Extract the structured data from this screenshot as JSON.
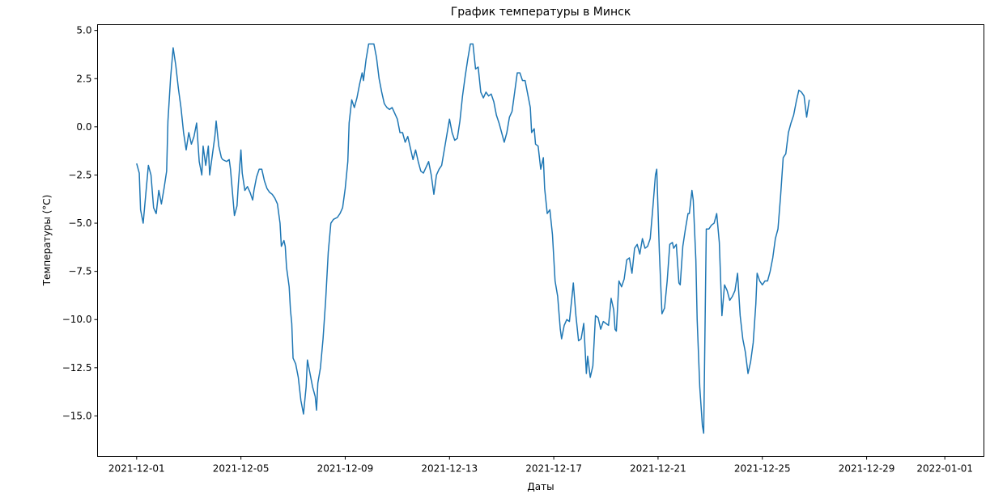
{
  "chart_data": {
    "type": "line",
    "title": "График температуры в Минск",
    "xlabel": "Даты",
    "ylabel": "Температуры (°C)",
    "x_start": "2021-12-01",
    "xlim": [
      "2021-11-29T12:00",
      "2022-01-02T12:00"
    ],
    "ylim": [
      -17.1,
      5.3
    ],
    "grid": false,
    "x_ticks": [
      "2021-12-01",
      "2021-12-05",
      "2021-12-09",
      "2021-12-13",
      "2021-12-17",
      "2021-12-21",
      "2021-12-25",
      "2021-12-29",
      "2022-01-01"
    ],
    "y_ticks": [
      5.0,
      2.5,
      0.0,
      -2.5,
      -5.0,
      -7.5,
      -10.0,
      -12.5,
      -15.0
    ],
    "y_tick_labels": [
      "5.0",
      "2.5",
      "0.0",
      "−2.5",
      "−5.0",
      "−7.5",
      "−10.0",
      "−12.5",
      "−15.0"
    ],
    "series": [
      {
        "color": "#1f77b4",
        "points": [
          [
            0.0,
            -1.9
          ],
          [
            0.1,
            -2.4
          ],
          [
            0.15,
            -4.3
          ],
          [
            0.25,
            -5.0
          ],
          [
            0.35,
            -3.5
          ],
          [
            0.45,
            -2.0
          ],
          [
            0.55,
            -2.5
          ],
          [
            0.65,
            -4.2
          ],
          [
            0.75,
            -4.5
          ],
          [
            0.85,
            -3.3
          ],
          [
            0.95,
            -4.0
          ],
          [
            1.05,
            -3.2
          ],
          [
            1.15,
            -2.3
          ],
          [
            1.2,
            0.3
          ],
          [
            1.3,
            2.5
          ],
          [
            1.4,
            4.1
          ],
          [
            1.5,
            3.2
          ],
          [
            1.6,
            2.0
          ],
          [
            1.7,
            1.0
          ],
          [
            1.8,
            -0.3
          ],
          [
            1.9,
            -1.2
          ],
          [
            2.0,
            -0.3
          ],
          [
            2.1,
            -0.9
          ],
          [
            2.2,
            -0.5
          ],
          [
            2.3,
            0.2
          ],
          [
            2.4,
            -1.8
          ],
          [
            2.5,
            -2.5
          ],
          [
            2.55,
            -1.0
          ],
          [
            2.65,
            -2.0
          ],
          [
            2.75,
            -1.0
          ],
          [
            2.8,
            -2.5
          ],
          [
            2.9,
            -1.5
          ],
          [
            3.0,
            -0.5
          ],
          [
            3.05,
            0.3
          ],
          [
            3.15,
            -1.0
          ],
          [
            3.25,
            -1.6
          ],
          [
            3.3,
            -1.7
          ],
          [
            3.45,
            -1.8
          ],
          [
            3.55,
            -1.7
          ],
          [
            3.6,
            -2.2
          ],
          [
            3.7,
            -3.8
          ],
          [
            3.75,
            -4.6
          ],
          [
            3.85,
            -4.1
          ],
          [
            3.9,
            -3.0
          ],
          [
            4.0,
            -1.2
          ],
          [
            4.05,
            -2.4
          ],
          [
            4.15,
            -3.3
          ],
          [
            4.25,
            -3.1
          ],
          [
            4.35,
            -3.4
          ],
          [
            4.45,
            -3.8
          ],
          [
            4.5,
            -3.3
          ],
          [
            4.6,
            -2.6
          ],
          [
            4.7,
            -2.2
          ],
          [
            4.8,
            -2.2
          ],
          [
            4.9,
            -2.8
          ],
          [
            5.0,
            -3.2
          ],
          [
            5.1,
            -3.4
          ],
          [
            5.2,
            -3.5
          ],
          [
            5.3,
            -3.7
          ],
          [
            5.4,
            -4.0
          ],
          [
            5.5,
            -5.0
          ],
          [
            5.55,
            -6.2
          ],
          [
            5.65,
            -5.9
          ],
          [
            5.7,
            -6.2
          ],
          [
            5.75,
            -7.3
          ],
          [
            5.85,
            -8.3
          ],
          [
            5.9,
            -9.5
          ],
          [
            5.95,
            -10.2
          ],
          [
            6.0,
            -12.0
          ],
          [
            6.1,
            -12.3
          ],
          [
            6.2,
            -13.0
          ],
          [
            6.3,
            -14.2
          ],
          [
            6.4,
            -14.9
          ],
          [
            6.5,
            -13.5
          ],
          [
            6.55,
            -12.1
          ],
          [
            6.65,
            -12.8
          ],
          [
            6.75,
            -13.5
          ],
          [
            6.85,
            -14.0
          ],
          [
            6.9,
            -14.7
          ],
          [
            6.95,
            -13.3
          ],
          [
            7.05,
            -12.5
          ],
          [
            7.15,
            -11.0
          ],
          [
            7.25,
            -9.0
          ],
          [
            7.35,
            -6.5
          ],
          [
            7.45,
            -5.0
          ],
          [
            7.55,
            -4.8
          ],
          [
            7.7,
            -4.7
          ],
          [
            7.8,
            -4.5
          ],
          [
            7.9,
            -4.2
          ],
          [
            8.0,
            -3.2
          ],
          [
            8.1,
            -1.8
          ],
          [
            8.15,
            0.2
          ],
          [
            8.25,
            1.4
          ],
          [
            8.35,
            1.0
          ],
          [
            8.45,
            1.5
          ],
          [
            8.55,
            2.2
          ],
          [
            8.65,
            2.8
          ],
          [
            8.7,
            2.4
          ],
          [
            8.8,
            3.5
          ],
          [
            8.9,
            4.3
          ],
          [
            9.0,
            4.3
          ],
          [
            9.1,
            4.3
          ],
          [
            9.2,
            3.6
          ],
          [
            9.3,
            2.5
          ],
          [
            9.4,
            1.8
          ],
          [
            9.5,
            1.2
          ],
          [
            9.6,
            1.0
          ],
          [
            9.7,
            0.9
          ],
          [
            9.8,
            1.0
          ],
          [
            9.9,
            0.7
          ],
          [
            10.0,
            0.4
          ],
          [
            10.1,
            -0.3
          ],
          [
            10.2,
            -0.3
          ],
          [
            10.3,
            -0.8
          ],
          [
            10.4,
            -0.5
          ],
          [
            10.5,
            -1.1
          ],
          [
            10.6,
            -1.7
          ],
          [
            10.7,
            -1.2
          ],
          [
            10.8,
            -1.8
          ],
          [
            10.9,
            -2.3
          ],
          [
            11.0,
            -2.4
          ],
          [
            11.1,
            -2.1
          ],
          [
            11.2,
            -1.8
          ],
          [
            11.3,
            -2.5
          ],
          [
            11.4,
            -3.5
          ],
          [
            11.5,
            -2.5
          ],
          [
            11.6,
            -2.2
          ],
          [
            11.7,
            -2.0
          ],
          [
            11.8,
            -1.2
          ],
          [
            11.9,
            -0.4
          ],
          [
            12.0,
            0.4
          ],
          [
            12.1,
            -0.3
          ],
          [
            12.2,
            -0.7
          ],
          [
            12.3,
            -0.6
          ],
          [
            12.4,
            0.3
          ],
          [
            12.5,
            1.6
          ],
          [
            12.6,
            2.6
          ],
          [
            12.7,
            3.5
          ],
          [
            12.8,
            4.3
          ],
          [
            12.9,
            4.3
          ],
          [
            13.0,
            3.0
          ],
          [
            13.1,
            3.1
          ],
          [
            13.2,
            1.8
          ],
          [
            13.3,
            1.5
          ],
          [
            13.4,
            1.8
          ],
          [
            13.5,
            1.6
          ],
          [
            13.6,
            1.7
          ],
          [
            13.7,
            1.3
          ],
          [
            13.8,
            0.6
          ],
          [
            13.9,
            0.2
          ],
          [
            14.0,
            -0.3
          ],
          [
            14.1,
            -0.8
          ],
          [
            14.2,
            -0.3
          ],
          [
            14.3,
            0.5
          ],
          [
            14.4,
            0.8
          ],
          [
            14.5,
            1.8
          ],
          [
            14.6,
            2.8
          ],
          [
            14.7,
            2.8
          ],
          [
            14.8,
            2.4
          ],
          [
            14.9,
            2.4
          ],
          [
            15.0,
            1.7
          ],
          [
            15.1,
            1.0
          ],
          [
            15.15,
            -0.3
          ],
          [
            15.25,
            -0.1
          ],
          [
            15.3,
            -0.9
          ],
          [
            15.4,
            -1.0
          ],
          [
            15.5,
            -2.2
          ],
          [
            15.6,
            -1.6
          ],
          [
            15.65,
            -3.2
          ],
          [
            15.75,
            -4.5
          ],
          [
            15.85,
            -4.3
          ],
          [
            15.95,
            -5.6
          ],
          [
            16.05,
            -8.0
          ],
          [
            16.15,
            -8.8
          ],
          [
            16.25,
            -10.5
          ],
          [
            16.3,
            -11.0
          ],
          [
            16.4,
            -10.3
          ],
          [
            16.5,
            -10.0
          ],
          [
            16.6,
            -10.1
          ],
          [
            16.7,
            -8.8
          ],
          [
            16.75,
            -8.1
          ],
          [
            16.85,
            -9.8
          ],
          [
            16.95,
            -11.1
          ],
          [
            17.05,
            -11.0
          ],
          [
            17.15,
            -10.2
          ],
          [
            17.25,
            -12.8
          ],
          [
            17.3,
            -11.9
          ],
          [
            17.4,
            -13.0
          ],
          [
            17.5,
            -12.4
          ],
          [
            17.6,
            -9.8
          ],
          [
            17.7,
            -9.9
          ],
          [
            17.8,
            -10.5
          ],
          [
            17.9,
            -10.1
          ],
          [
            18.0,
            -10.2
          ],
          [
            18.1,
            -10.3
          ],
          [
            18.2,
            -8.9
          ],
          [
            18.3,
            -9.5
          ],
          [
            18.35,
            -10.5
          ],
          [
            18.4,
            -10.6
          ],
          [
            18.5,
            -8.0
          ],
          [
            18.6,
            -8.3
          ],
          [
            18.7,
            -7.9
          ],
          [
            18.8,
            -6.9
          ],
          [
            18.9,
            -6.8
          ],
          [
            19.0,
            -7.6
          ],
          [
            19.1,
            -6.3
          ],
          [
            19.2,
            -6.1
          ],
          [
            19.3,
            -6.6
          ],
          [
            19.4,
            -5.8
          ],
          [
            19.5,
            -6.3
          ],
          [
            19.6,
            -6.2
          ],
          [
            19.7,
            -5.8
          ],
          [
            19.8,
            -4.2
          ],
          [
            19.9,
            -2.5
          ],
          [
            19.95,
            -2.2
          ],
          [
            20.05,
            -6.5
          ],
          [
            20.15,
            -9.7
          ],
          [
            20.25,
            -9.4
          ],
          [
            20.35,
            -8.0
          ],
          [
            20.45,
            -6.1
          ],
          [
            20.55,
            -6.0
          ],
          [
            20.6,
            -6.3
          ],
          [
            20.7,
            -6.1
          ],
          [
            20.8,
            -8.1
          ],
          [
            20.85,
            -8.2
          ],
          [
            20.95,
            -6.2
          ],
          [
            21.05,
            -5.3
          ],
          [
            21.15,
            -4.5
          ],
          [
            21.2,
            -4.5
          ],
          [
            21.3,
            -3.3
          ],
          [
            21.35,
            -3.8
          ],
          [
            21.45,
            -6.9
          ],
          [
            21.5,
            -10.0
          ],
          [
            21.6,
            -13.5
          ],
          [
            21.7,
            -15.5
          ],
          [
            21.75,
            -15.9
          ],
          [
            21.85,
            -5.3
          ],
          [
            21.95,
            -5.3
          ],
          [
            22.05,
            -5.1
          ],
          [
            22.15,
            -5.0
          ],
          [
            22.25,
            -4.5
          ],
          [
            22.35,
            -6.0
          ],
          [
            22.45,
            -9.8
          ],
          [
            22.55,
            -8.2
          ],
          [
            22.65,
            -8.5
          ],
          [
            22.75,
            -9.0
          ],
          [
            22.85,
            -8.8
          ],
          [
            22.95,
            -8.5
          ],
          [
            23.05,
            -7.6
          ],
          [
            23.15,
            -9.8
          ],
          [
            23.25,
            -11.0
          ],
          [
            23.35,
            -11.7
          ],
          [
            23.45,
            -12.8
          ],
          [
            23.55,
            -12.2
          ],
          [
            23.65,
            -11.2
          ],
          [
            23.75,
            -9.2
          ],
          [
            23.8,
            -7.6
          ],
          [
            23.9,
            -8.0
          ],
          [
            24.0,
            -8.2
          ],
          [
            24.1,
            -8.0
          ],
          [
            24.2,
            -8.0
          ],
          [
            24.3,
            -7.5
          ],
          [
            24.4,
            -6.8
          ],
          [
            24.5,
            -5.8
          ],
          [
            24.6,
            -5.3
          ],
          [
            24.7,
            -3.6
          ],
          [
            24.8,
            -1.6
          ],
          [
            24.9,
            -1.4
          ],
          [
            25.0,
            -0.3
          ],
          [
            25.1,
            0.2
          ],
          [
            25.2,
            0.6
          ],
          [
            25.3,
            1.3
          ],
          [
            25.4,
            1.9
          ],
          [
            25.5,
            1.8
          ],
          [
            25.6,
            1.6
          ],
          [
            25.7,
            0.5
          ],
          [
            25.8,
            1.4
          ]
        ]
      }
    ]
  }
}
